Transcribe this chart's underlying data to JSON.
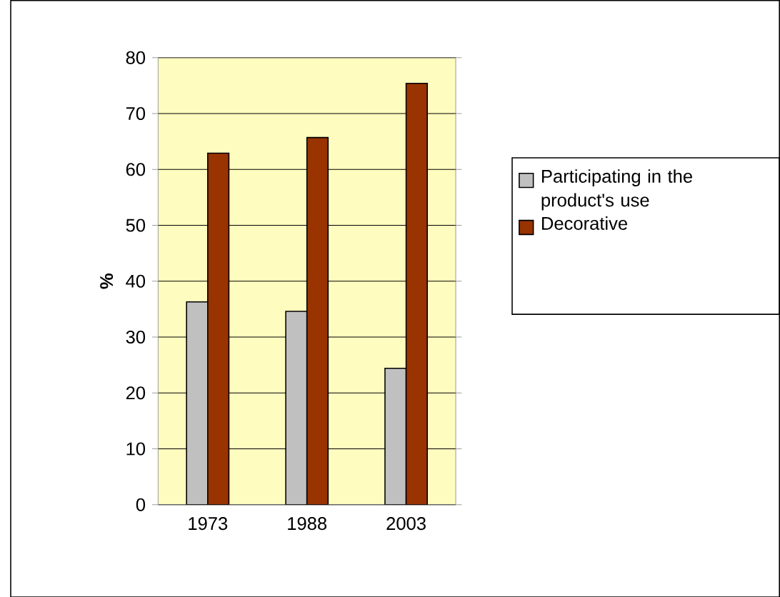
{
  "chart_data": {
    "type": "bar",
    "ylabel": "%",
    "categories": [
      "1973",
      "1988",
      "2003"
    ],
    "series": [
      {
        "name": "Participating in the product's use",
        "color": "#c0c0c0",
        "values": [
          36.3,
          34.6,
          24.4
        ]
      },
      {
        "name": "Decorative",
        "color": "#993300",
        "values": [
          62.9,
          65.7,
          75.4
        ]
      }
    ],
    "ylim": [
      0,
      80
    ],
    "yticks": [
      0,
      10,
      20,
      30,
      40,
      50,
      60,
      70,
      80
    ],
    "grid": "y",
    "legend": "right"
  }
}
